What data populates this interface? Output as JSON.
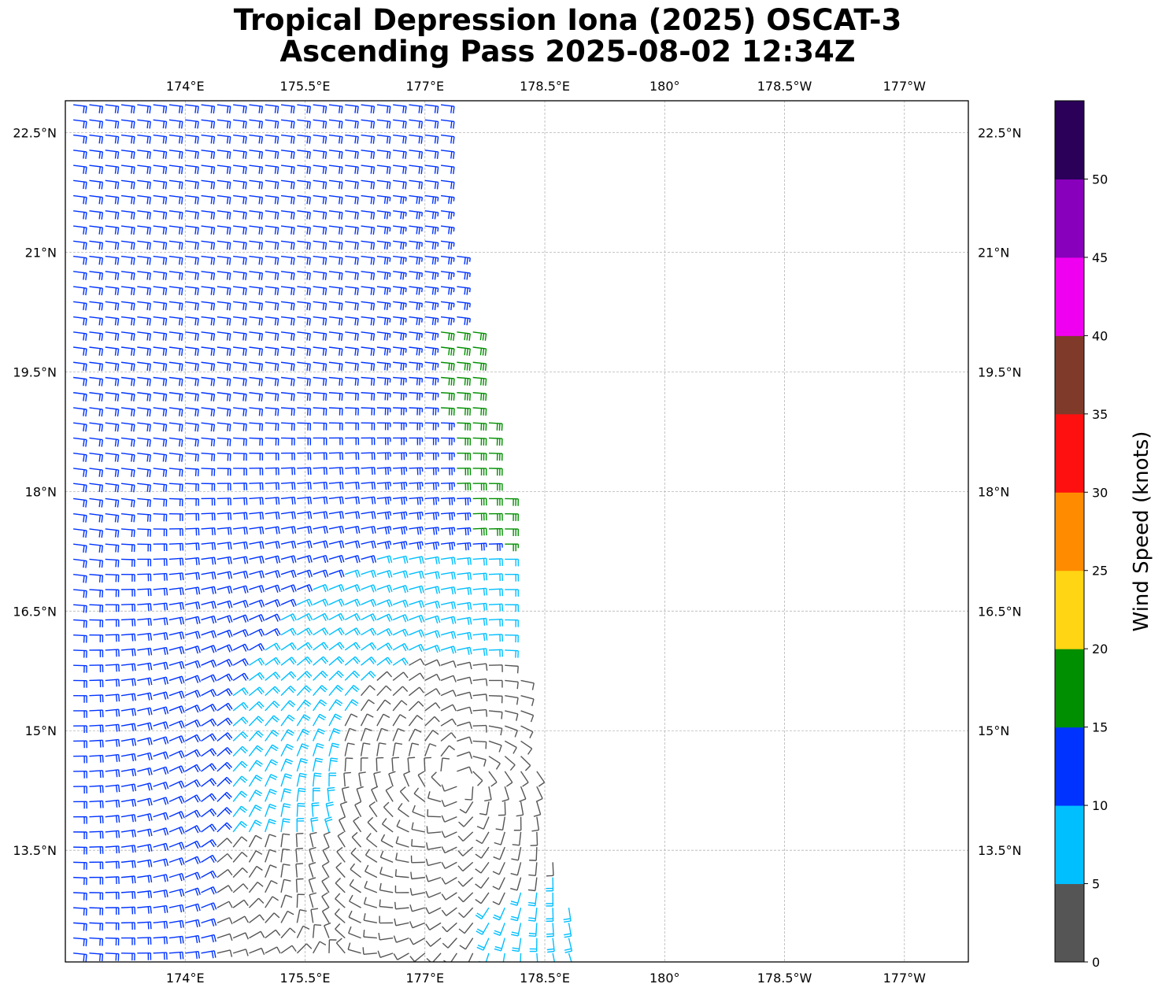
{
  "title": {
    "line1": "Tropical Depression Iona (2025) OSCAT-3",
    "line2": "Ascending Pass 2025-08-02 12:34Z"
  },
  "map": {
    "lon_range": [
      172.5,
      183.8
    ],
    "lat_range": [
      12.1,
      22.9
    ],
    "lon_ticks": [
      {
        "value": 174.0,
        "label": "174°E"
      },
      {
        "value": 175.5,
        "label": "175.5°E"
      },
      {
        "value": 177.0,
        "label": "177°E"
      },
      {
        "value": 178.5,
        "label": "178.5°E"
      },
      {
        "value": 180.0,
        "label": "180°"
      },
      {
        "value": 181.5,
        "label": "178.5°W"
      },
      {
        "value": 183.0,
        "label": "177°W"
      }
    ],
    "lat_ticks": [
      {
        "value": 22.5,
        "label": "22.5°N"
      },
      {
        "value": 21.0,
        "label": "21°N"
      },
      {
        "value": 19.5,
        "label": "19.5°N"
      },
      {
        "value": 18.0,
        "label": "18°N"
      },
      {
        "value": 16.5,
        "label": "16.5°N"
      },
      {
        "value": 15.0,
        "label": "15°N"
      },
      {
        "value": 13.5,
        "label": "13.5°N"
      }
    ],
    "gridlines": true,
    "swath": {
      "east_edge": [
        [
          22.9,
          177.2
        ],
        [
          21.0,
          177.4
        ],
        [
          19.5,
          177.7
        ],
        [
          18.0,
          178.0
        ],
        [
          16.5,
          178.1
        ],
        [
          15.0,
          178.3
        ],
        [
          13.5,
          178.6
        ],
        [
          12.1,
          179.0
        ]
      ],
      "west_edge": 172.5
    },
    "circulation_center": {
      "lat": 14.4,
      "lon": 177.4
    }
  },
  "colorbar": {
    "label": "Wind Speed (knots)",
    "ticks": [
      "0",
      "5",
      "10",
      "15",
      "20",
      "25",
      "30",
      "35",
      "40",
      "45",
      "50"
    ],
    "bins": [
      {
        "min": 0,
        "max": 5,
        "color": "#555555"
      },
      {
        "min": 5,
        "max": 10,
        "color": "#00bfff"
      },
      {
        "min": 10,
        "max": 15,
        "color": "#0033ff"
      },
      {
        "min": 15,
        "max": 20,
        "color": "#008f00"
      },
      {
        "min": 20,
        "max": 25,
        "color": "#ffd514"
      },
      {
        "min": 25,
        "max": 30,
        "color": "#ff8c00"
      },
      {
        "min": 30,
        "max": 35,
        "color": "#ff1010"
      },
      {
        "min": 35,
        "max": 40,
        "color": "#803a2a"
      },
      {
        "min": 40,
        "max": 45,
        "color": "#f000f0"
      },
      {
        "min": 45,
        "max": 50,
        "color": "#8800bb"
      },
      {
        "min": 50,
        "max": 55,
        "color": "#2a0058"
      }
    ]
  }
}
